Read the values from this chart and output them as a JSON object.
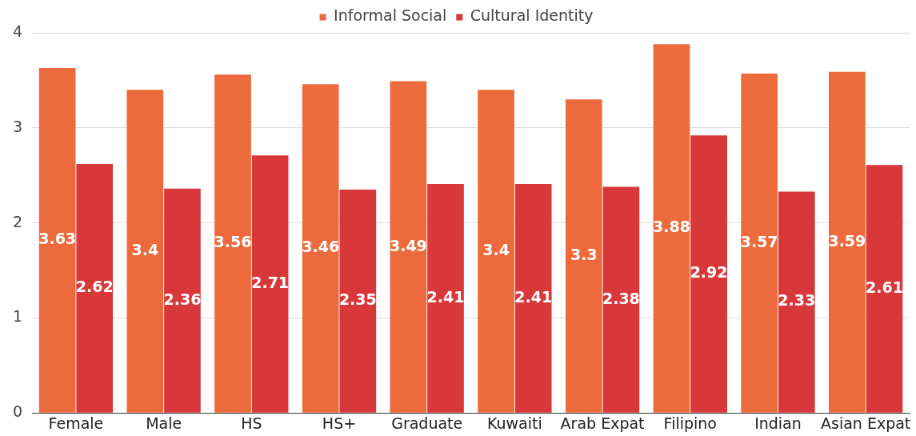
{
  "chart_data": {
    "type": "bar",
    "categories": [
      "Female",
      "Male",
      "HS",
      "HS+",
      "Graduate",
      "Kuwaiti",
      "Arab Expat",
      "Filipino",
      "Indian",
      "Asian Expat"
    ],
    "series": [
      {
        "name": "Informal Social",
        "color": "#ec6a3c",
        "values": [
          3.63,
          3.4,
          3.56,
          3.46,
          3.49,
          3.4,
          3.3,
          3.88,
          3.57,
          3.59
        ]
      },
      {
        "name": "Cultural Identity",
        "color": "#d9383a",
        "values": [
          2.62,
          2.36,
          2.71,
          2.35,
          2.41,
          2.41,
          2.38,
          2.92,
          2.33,
          2.61
        ]
      }
    ],
    "ylim": [
      0,
      4
    ],
    "yticks": [
      0,
      1,
      2,
      3,
      4
    ],
    "grid": "y",
    "legend": "top",
    "data_labels": true
  }
}
